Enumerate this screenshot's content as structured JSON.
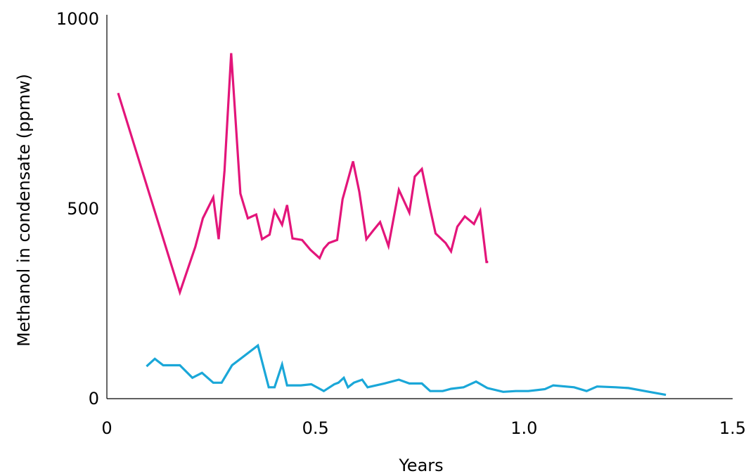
{
  "chart_data": {
    "type": "line",
    "title": "",
    "xlabel": "Years",
    "ylabel": "Methanol in condensate (ppmw)",
    "xlim": [
      0,
      1.5
    ],
    "ylim": [
      0,
      1000
    ],
    "xticks": [
      0,
      0.5,
      1.0,
      1.5
    ],
    "xtick_labels": [
      "0",
      "0.5",
      "1.0",
      "1.5"
    ],
    "yticks": [
      0,
      500,
      1000
    ],
    "ytick_labels": [
      "0",
      "500",
      "1000"
    ],
    "grid": false,
    "legend": "none",
    "series": [
      {
        "color": "#e3157a",
        "points": [
          [
            0.027,
            805
          ],
          [
            0.175,
            280
          ],
          [
            0.212,
            400
          ],
          [
            0.23,
            475
          ],
          [
            0.255,
            530
          ],
          [
            0.268,
            420
          ],
          [
            0.282,
            600
          ],
          [
            0.298,
            910
          ],
          [
            0.32,
            540
          ],
          [
            0.338,
            475
          ],
          [
            0.358,
            485
          ],
          [
            0.372,
            420
          ],
          [
            0.39,
            432
          ],
          [
            0.402,
            495
          ],
          [
            0.42,
            458
          ],
          [
            0.432,
            510
          ],
          [
            0.445,
            422
          ],
          [
            0.468,
            418
          ],
          [
            0.488,
            392
          ],
          [
            0.51,
            370
          ],
          [
            0.52,
            395
          ],
          [
            0.532,
            410
          ],
          [
            0.552,
            418
          ],
          [
            0.565,
            525
          ],
          [
            0.59,
            625
          ],
          [
            0.605,
            545
          ],
          [
            0.622,
            420
          ],
          [
            0.638,
            442
          ],
          [
            0.655,
            465
          ],
          [
            0.675,
            402
          ],
          [
            0.7,
            550
          ],
          [
            0.725,
            490
          ],
          [
            0.738,
            585
          ],
          [
            0.755,
            605
          ],
          [
            0.775,
            500
          ],
          [
            0.788,
            435
          ],
          [
            0.812,
            410
          ],
          [
            0.825,
            388
          ],
          [
            0.84,
            453
          ],
          [
            0.858,
            480
          ],
          [
            0.88,
            460
          ],
          [
            0.895,
            495
          ],
          [
            0.91,
            360
          ],
          [
            0.914,
            360
          ]
        ]
      },
      {
        "color": "#1aa7d8",
        "points": [
          [
            0.095,
            85
          ],
          [
            0.115,
            105
          ],
          [
            0.135,
            88
          ],
          [
            0.175,
            88
          ],
          [
            0.205,
            55
          ],
          [
            0.228,
            68
          ],
          [
            0.255,
            42
          ],
          [
            0.275,
            42
          ],
          [
            0.3,
            88
          ],
          [
            0.362,
            140
          ],
          [
            0.388,
            30
          ],
          [
            0.402,
            30
          ],
          [
            0.42,
            90
          ],
          [
            0.432,
            35
          ],
          [
            0.465,
            35
          ],
          [
            0.49,
            38
          ],
          [
            0.52,
            20
          ],
          [
            0.545,
            38
          ],
          [
            0.555,
            42
          ],
          [
            0.568,
            55
          ],
          [
            0.578,
            30
          ],
          [
            0.592,
            42
          ],
          [
            0.612,
            50
          ],
          [
            0.625,
            30
          ],
          [
            0.665,
            40
          ],
          [
            0.7,
            50
          ],
          [
            0.725,
            40
          ],
          [
            0.755,
            40
          ],
          [
            0.775,
            20
          ],
          [
            0.805,
            20
          ],
          [
            0.825,
            26
          ],
          [
            0.855,
            30
          ],
          [
            0.885,
            45
          ],
          [
            0.912,
            28
          ],
          [
            0.95,
            18
          ],
          [
            0.98,
            20
          ],
          [
            1.01,
            20
          ],
          [
            1.05,
            25
          ],
          [
            1.07,
            35
          ],
          [
            1.12,
            30
          ],
          [
            1.15,
            20
          ],
          [
            1.175,
            32
          ],
          [
            1.22,
            30
          ],
          [
            1.25,
            28
          ],
          [
            1.3,
            18
          ],
          [
            1.34,
            10
          ]
        ]
      }
    ]
  }
}
